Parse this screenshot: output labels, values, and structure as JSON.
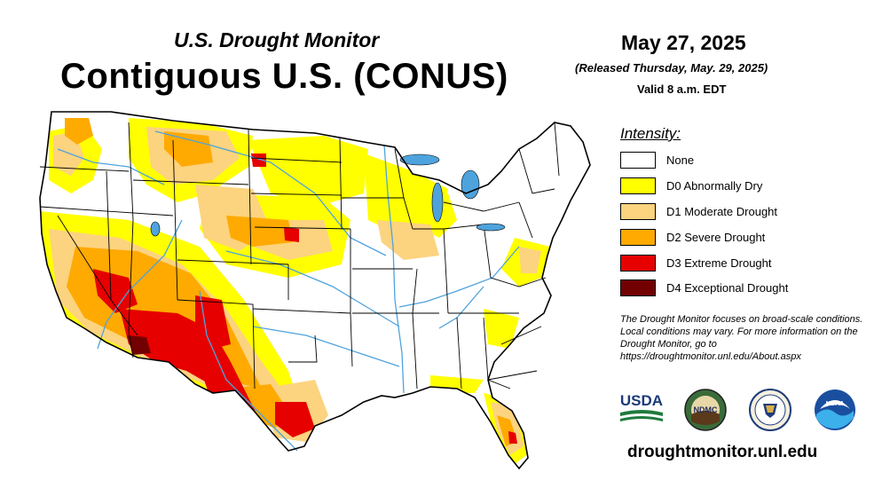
{
  "header": {
    "subtitle": "U.S. Drought Monitor",
    "title": "Contiguous U.S. (CONUS)",
    "date": "May 27, 2025",
    "released": "(Released Thursday, May. 29, 2025)",
    "valid": "Valid 8 a.m. EDT"
  },
  "legend": {
    "title": "Intensity:",
    "items": [
      {
        "label": "None",
        "color": "#ffffff"
      },
      {
        "label": "D0 Abnormally Dry",
        "color": "#ffff00"
      },
      {
        "label": "D1 Moderate Drought",
        "color": "#fcd37f"
      },
      {
        "label": "D2 Severe Drought",
        "color": "#ffaa00"
      },
      {
        "label": "D3 Extreme Drought",
        "color": "#e60000"
      },
      {
        "label": "D4 Exceptional Drought",
        "color": "#730000"
      }
    ]
  },
  "note": "The Drought Monitor focuses on broad-scale conditions. Local conditions may vary. For more information on the Drought Monitor, go to https://droughtmonitor.unl.edu/About.aspx",
  "logos": {
    "usda": "USDA",
    "ndmc": "NDMC",
    "noaa": "NOAA"
  },
  "footer": {
    "url": "droughtmonitor.unl.edu"
  },
  "map": {
    "colors": {
      "none": "#ffffff",
      "d0": "#ffff00",
      "d1": "#fcd37f",
      "d2": "#ffaa00",
      "d3": "#e60000",
      "d4": "#730000",
      "water": "#4ea3dd",
      "border": "#000000"
    }
  }
}
